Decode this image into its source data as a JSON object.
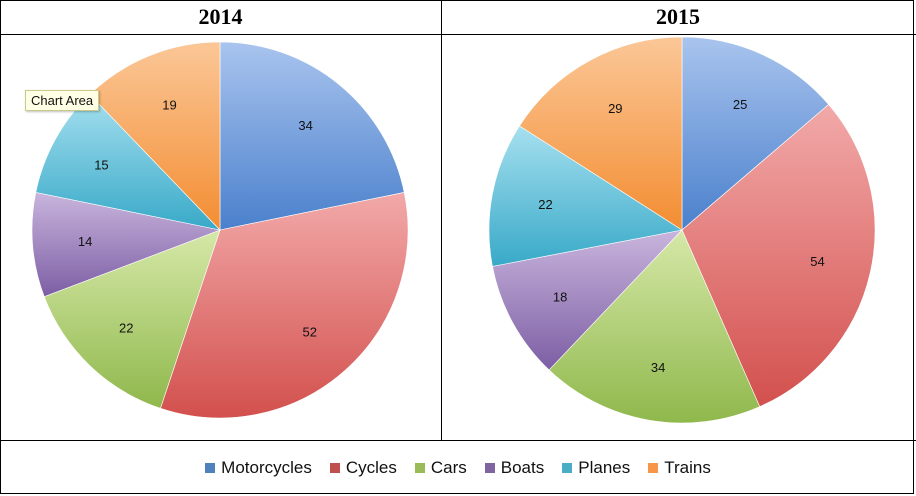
{
  "chart_data": [
    {
      "type": "pie",
      "title": "2014",
      "categories": [
        "Motorcycles",
        "Cycles",
        "Cars",
        "Boats",
        "Planes",
        "Trains"
      ],
      "values": [
        34,
        52,
        22,
        14,
        15,
        19
      ],
      "legend_position": "bottom",
      "data_labels": true
    },
    {
      "type": "pie",
      "title": "2015",
      "categories": [
        "Motorcycles",
        "Cycles",
        "Cars",
        "Boats",
        "Planes",
        "Trains"
      ],
      "values": [
        25,
        54,
        34,
        18,
        22,
        29
      ],
      "legend_position": "bottom",
      "data_labels": true
    }
  ],
  "legend": [
    {
      "label": "Motorcycles",
      "color": "#4f81bd"
    },
    {
      "label": "Cycles",
      "color": "#c0504d"
    },
    {
      "label": "Cars",
      "color": "#9bbb59"
    },
    {
      "label": "Boats",
      "color": "#8064a2"
    },
    {
      "label": "Planes",
      "color": "#4bacc6"
    },
    {
      "label": "Trains",
      "color": "#f79646"
    }
  ],
  "gradients": [
    {
      "light": "#a9c4ee",
      "dark": "#4a80cc"
    },
    {
      "light": "#f2a9a9",
      "dark": "#d2504d"
    },
    {
      "light": "#d6e8a8",
      "dark": "#8fb84c"
    },
    {
      "light": "#c9b5dd",
      "dark": "#7c5ea4"
    },
    {
      "light": "#a6e0ef",
      "dark": "#38a9c8"
    },
    {
      "light": "#fbc797",
      "dark": "#f38d32"
    }
  ],
  "tooltip": "Chart Area"
}
